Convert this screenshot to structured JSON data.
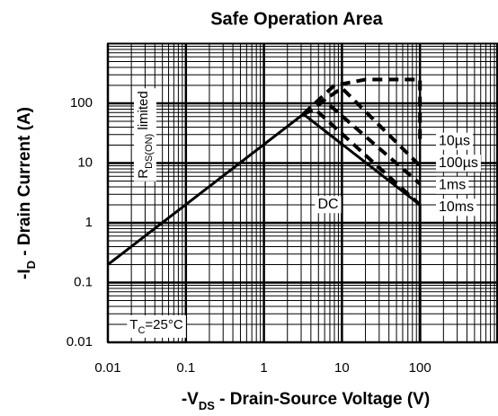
{
  "chart_data": {
    "type": "line",
    "title": "Safe Operation Area",
    "x_label": [
      "-V",
      "DS",
      " - Drain-Source Voltage (V)"
    ],
    "y_label": [
      "-I",
      "D",
      " - Drain Current (A)"
    ],
    "log_x": true,
    "log_y": true,
    "grid": true,
    "minor_grid": true,
    "xlim": [
      0.01,
      1000
    ],
    "ylim": [
      0.01,
      1000
    ],
    "xticks": [
      0.01,
      0.1,
      1,
      10,
      100
    ],
    "yticks": [
      0.01,
      0.1,
      1,
      10,
      100
    ],
    "series": [
      {
        "name": "DC",
        "color": "#000000",
        "dashed": false,
        "x": [
          0.01,
          3.2,
          100,
          100
        ],
        "values": [
          0.2,
          66,
          2,
          0.01
        ]
      },
      {
        "name": "10µs",
        "color": "#000000",
        "dashed": true,
        "x": [
          3.2,
          8,
          20,
          100,
          100
        ],
        "values": [
          66,
          200,
          250,
          250,
          25
        ]
      },
      {
        "name": "100µs",
        "color": "#000000",
        "dashed": true,
        "x": [
          3.2,
          10,
          100
        ],
        "values": [
          66,
          180,
          9
        ]
      },
      {
        "name": "1ms",
        "color": "#000000",
        "dashed": true,
        "x": [
          3.2,
          6,
          100
        ],
        "values": [
          66,
          110,
          4.5
        ]
      },
      {
        "name": "10ms",
        "color": "#000000",
        "dashed": true,
        "x": [
          3.2,
          4.5,
          100
        ],
        "values": [
          66,
          80,
          2
        ]
      }
    ],
    "annotations": [
      {
        "parts": [
          "R",
          "DS(ON)",
          " limited"
        ]
      },
      {
        "parts": [
          "T",
          "C",
          "=25°C"
        ]
      }
    ]
  }
}
